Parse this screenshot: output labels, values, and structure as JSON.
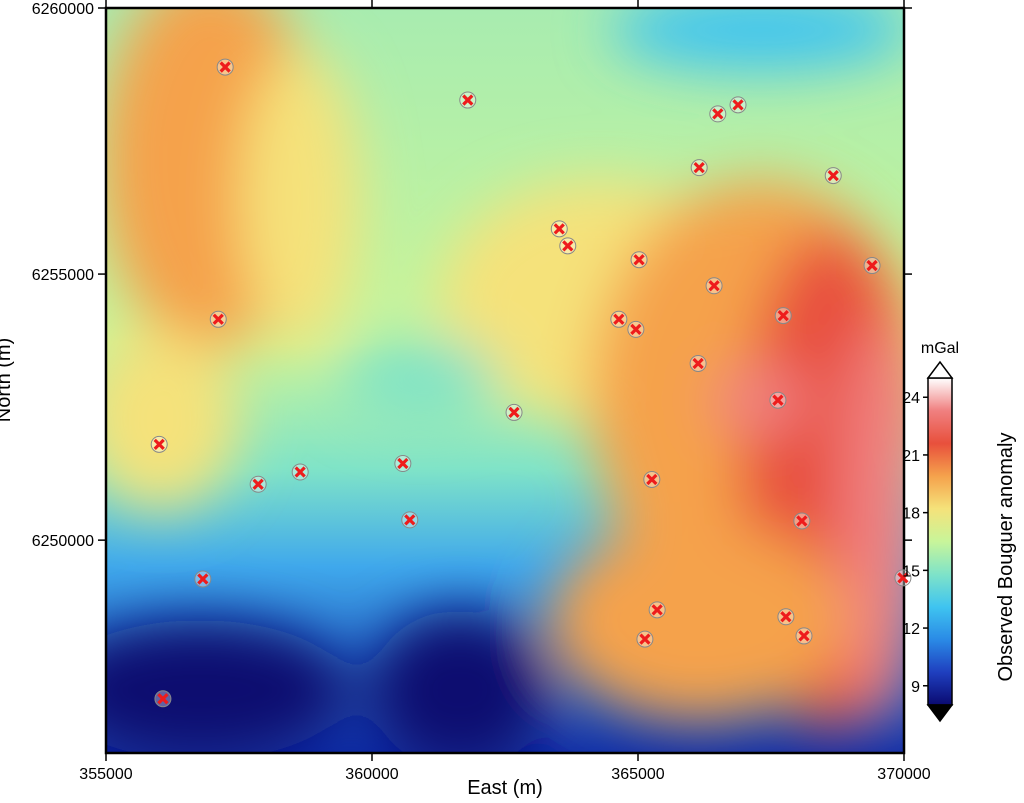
{
  "chart_data": {
    "type": "scatter",
    "xlabel": "East (m)",
    "ylabel": "North (m)",
    "xlim": [
      355000,
      370000
    ],
    "xticks": [
      355000,
      360000,
      365000,
      370000
    ],
    "ylim": [
      6246000,
      6260000
    ],
    "yticks": [
      6250000,
      6255000,
      6260000
    ],
    "marker_color": "#ee1c1c",
    "x": [
      357240,
      361800,
      366500,
      366880,
      366150,
      368670,
      363520,
      363680,
      365020,
      369400,
      366430,
      357110,
      364640,
      364960,
      367730,
      366130,
      367630,
      362670,
      356000,
      360580,
      358650,
      357860,
      365260,
      360710,
      368080,
      356820,
      369980,
      365360,
      365130,
      367780,
      368120,
      356070
    ],
    "y": [
      6258890,
      6258270,
      6258010,
      6258180,
      6257000,
      6256850,
      6255850,
      6255530,
      6255270,
      6255160,
      6254780,
      6254150,
      6254150,
      6253960,
      6254220,
      6253320,
      6252630,
      6252400,
      6251800,
      6251440,
      6251280,
      6251050,
      6251140,
      6250380,
      6250360,
      6249270,
      6249290,
      6248690,
      6248140,
      6248560,
      6248200,
      6247020
    ],
    "colorbar": {
      "label": "Observed Bouguer anomaly",
      "unit": "mGal",
      "lim": [
        8,
        25
      ],
      "ticks": [
        9,
        12,
        15,
        18,
        21,
        24
      ],
      "colormap": [
        "#0a0a70",
        "#1f3fbf",
        "#2a8ae6",
        "#3fc4f0",
        "#7fe3c8",
        "#c8f59a",
        "#f5e27a",
        "#f5a24c",
        "#e8503c",
        "#f08080",
        "#ffffff"
      ]
    }
  }
}
